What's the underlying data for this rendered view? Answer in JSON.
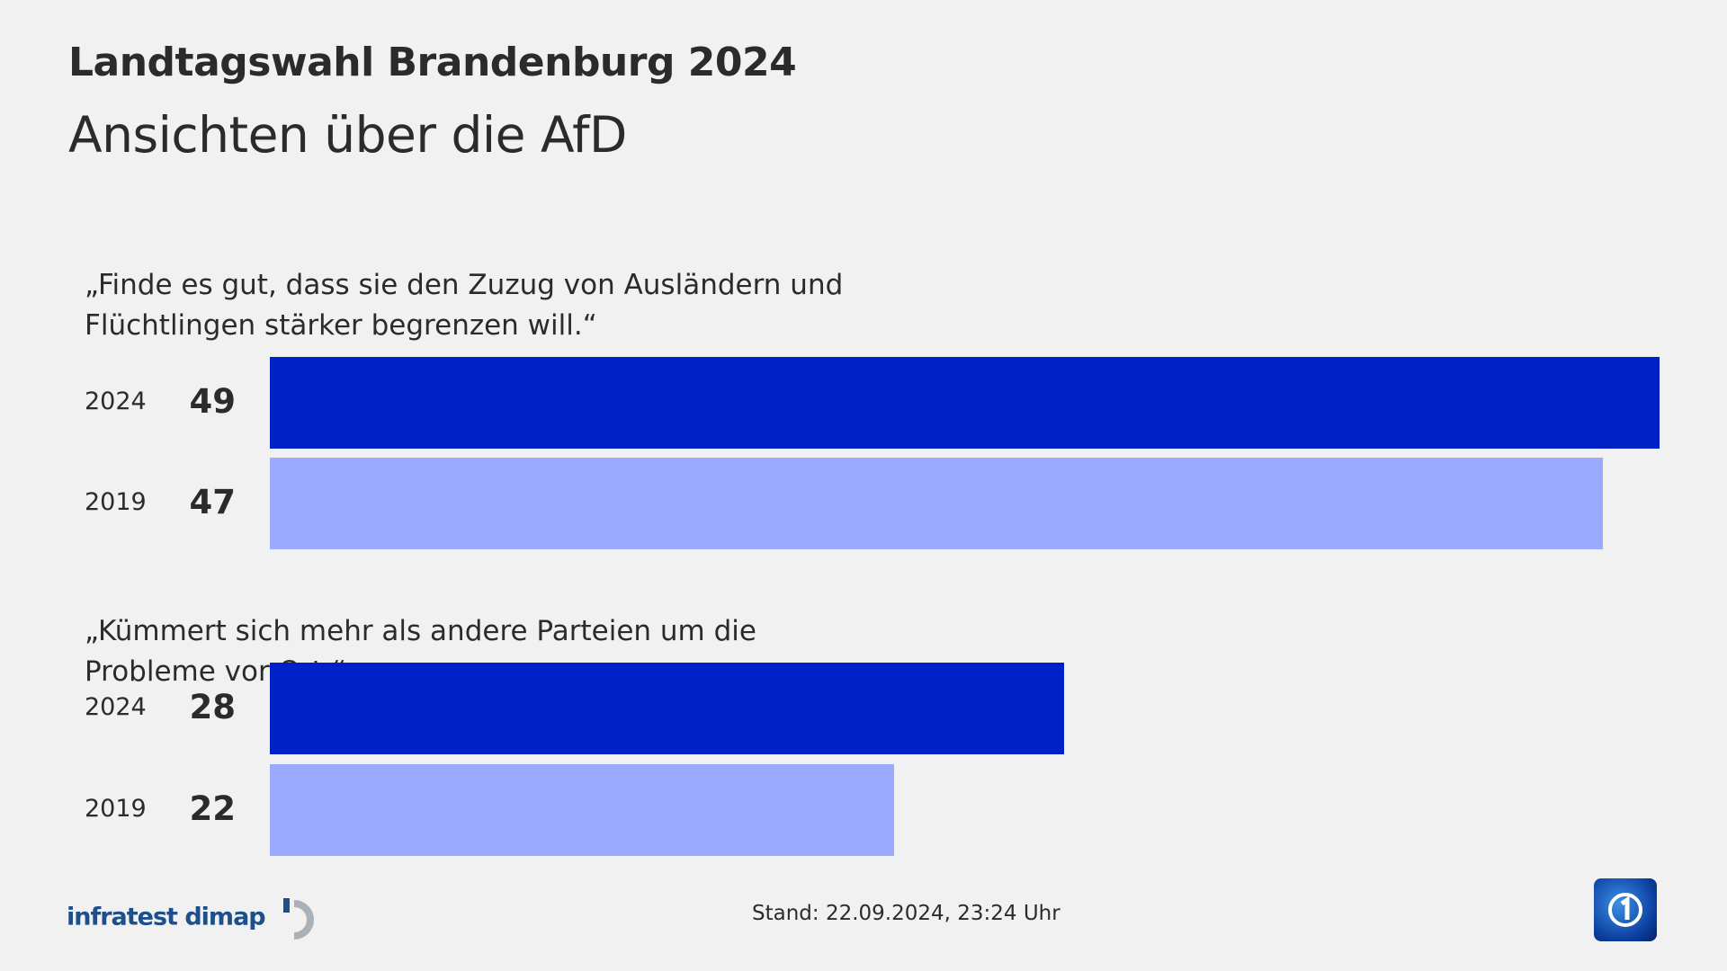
{
  "header": {
    "title": "Landtagswahl Brandenburg 2024",
    "subtitle": "Ansichten über die AfD"
  },
  "chart_data": {
    "type": "bar",
    "orientation": "horizontal",
    "xlim": [
      0,
      49
    ],
    "grid": false,
    "colors": {
      "2024": "#0020c8",
      "2019": "#9aaaff"
    },
    "groups": [
      {
        "label": "„Finde es gut, dass sie den Zuzug von Ausländern und Flüchtlingen stärker begrenzen will.“",
        "bars": [
          {
            "year": "2024",
            "value": 49
          },
          {
            "year": "2019",
            "value": 47
          }
        ]
      },
      {
        "label": "„Kümmert sich mehr als andere Parteien um die Probleme vor Ort.“",
        "bars": [
          {
            "year": "2024",
            "value": 28
          },
          {
            "year": "2019",
            "value": 22
          }
        ]
      }
    ]
  },
  "footer": {
    "source": "infratest dimap",
    "stand": "Stand:  22.09.2024, 23:24 Uhr",
    "logo_icon": "ard-das-erste-logo"
  }
}
